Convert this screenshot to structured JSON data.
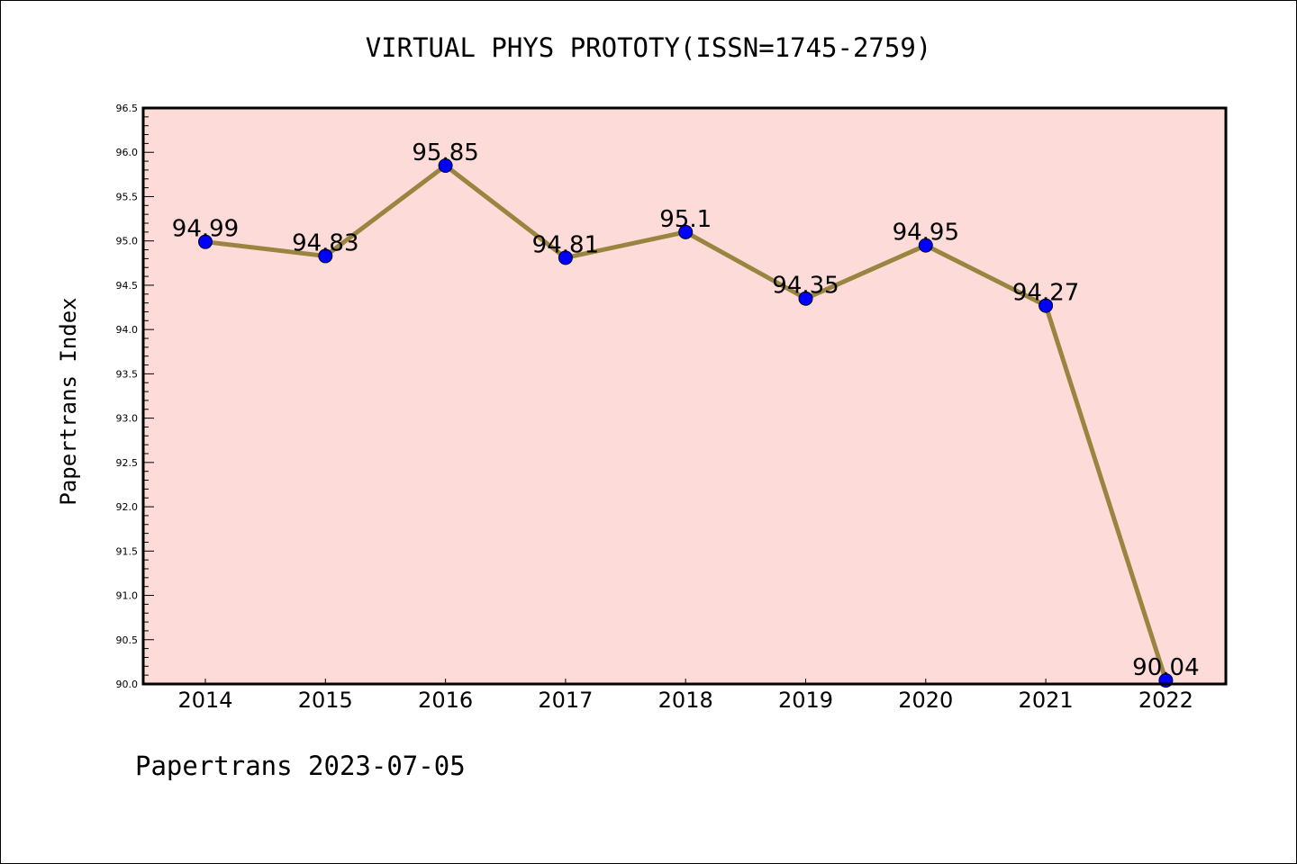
{
  "chart_data": {
    "type": "line",
    "title": "VIRTUAL PHYS PROTOTY(ISSN=1745-2759)",
    "xlabel": "",
    "ylabel": "Papertrans Index",
    "categories": [
      "2014",
      "2015",
      "2016",
      "2017",
      "2018",
      "2019",
      "2020",
      "2021",
      "2022"
    ],
    "series": [
      {
        "name": "Papertrans Index",
        "values": [
          94.99,
          94.83,
          95.85,
          94.81,
          95.1,
          94.35,
          94.95,
          94.27,
          90.04
        ],
        "labels": [
          "94.99",
          "94.83",
          "95.85",
          "94.81",
          "95.1",
          "94.35",
          "94.95",
          "94.27",
          "90.04"
        ]
      }
    ],
    "ylim": [
      90.0,
      96.5
    ],
    "yticks": [
      "90.0",
      "90.5",
      "91.0",
      "91.5",
      "92.0",
      "92.5",
      "93.0",
      "93.5",
      "94.0",
      "94.5",
      "95.0",
      "95.5",
      "96.0",
      "96.5"
    ],
    "grid": false,
    "legend": "none",
    "colors": {
      "plot_background": "#fddbd8",
      "line": "#9a8540",
      "marker": "#0000ff",
      "axis": "#000000"
    }
  },
  "footer": "Papertrans 2023-07-05"
}
